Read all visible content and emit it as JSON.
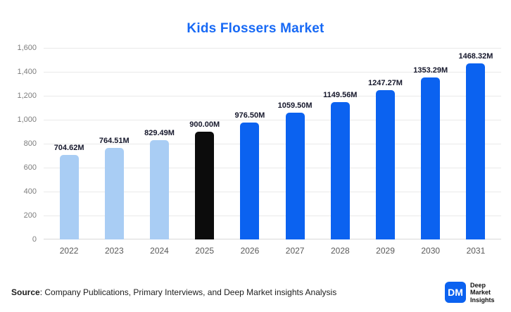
{
  "chart_data": {
    "type": "bar",
    "title": "Kids Flossers Market",
    "categories": [
      "2022",
      "2023",
      "2024",
      "2025",
      "2026",
      "2027",
      "2028",
      "2029",
      "2030",
      "2031"
    ],
    "values": [
      704.62,
      764.51,
      829.49,
      900.0,
      976.5,
      1059.5,
      1149.56,
      1247.27,
      1353.29,
      1468.32
    ],
    "labels": [
      "704.62M",
      "764.51M",
      "829.49M",
      "900.00M",
      "976.50M",
      "1059.50M",
      "1149.56M",
      "1247.27M",
      "1353.29M",
      "1468.32M"
    ],
    "xlabel": "",
    "ylabel": "",
    "ylim": [
      0,
      1600
    ],
    "yticks": [
      "1,600",
      "1,400",
      "1,200",
      "1,000",
      "800",
      "600",
      "400",
      "200",
      "0"
    ],
    "grid": "horizontal",
    "legend": "none",
    "bar_colors": [
      "#a9cdf4",
      "#a9cdf4",
      "#a9cdf4",
      "#0c0c0c",
      "#0b62f0",
      "#0b62f0",
      "#0b62f0",
      "#0b62f0",
      "#0b62f0",
      "#0b62f0"
    ]
  },
  "colors": {
    "title": "#1769f5",
    "historical_bar": "#a9cdf4",
    "base_year_bar": "#0c0c0c",
    "forecast_bar": "#0b62f0",
    "logo_blue": "#0b62f0"
  },
  "footer": {
    "source_label": "Source",
    "source_text": ": Company Publications, Primary Interviews, and Deep Market insights Analysis"
  },
  "logo": {
    "monogram": "DM",
    "name": "Deep Market Insights"
  }
}
